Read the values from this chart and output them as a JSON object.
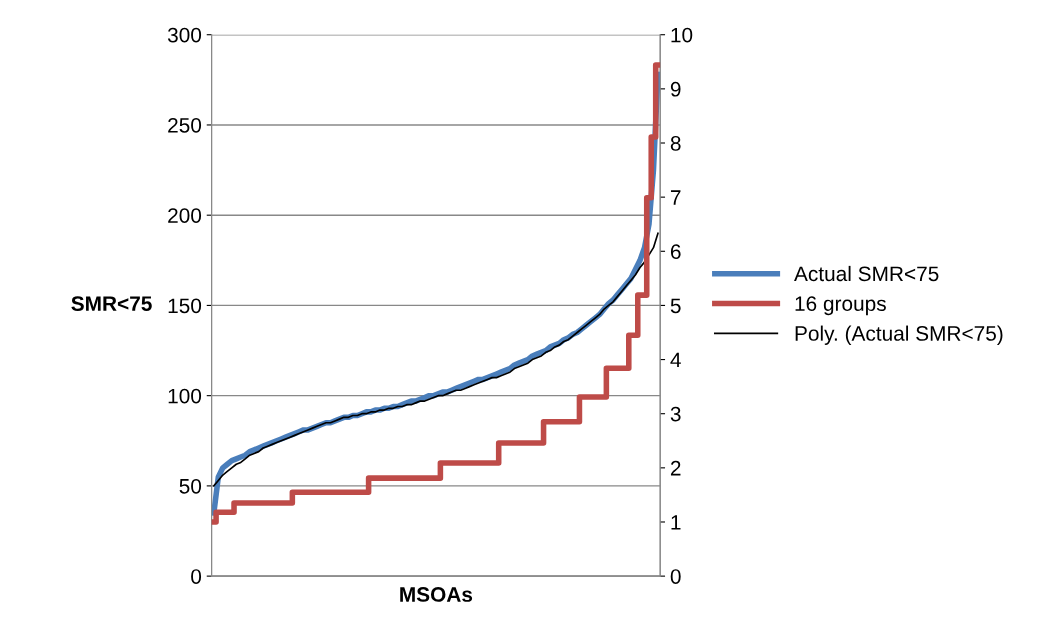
{
  "chart_data": {
    "type": "line",
    "xlabel": "MSOAs",
    "ylabel": "SMR<75",
    "categories": [
      null,
      null,
      null,
      null,
      null,
      null,
      null,
      null,
      null,
      null,
      null,
      null,
      null,
      null,
      null,
      null,
      null,
      null,
      null,
      null,
      null,
      null,
      null,
      null,
      null,
      null,
      null,
      null,
      null,
      null,
      null,
      null,
      null,
      null,
      null,
      null,
      null,
      null,
      null,
      null,
      null,
      null,
      null,
      null,
      null,
      null,
      null,
      null,
      null,
      null,
      null,
      null,
      null,
      null,
      null,
      null,
      null,
      null,
      null,
      null,
      null,
      null,
      null,
      null,
      null,
      null,
      null,
      null,
      null,
      null,
      null,
      null,
      null,
      null,
      null,
      null,
      null,
      null,
      null,
      null,
      null,
      null,
      null,
      null,
      null,
      null,
      null,
      null,
      null,
      null,
      null,
      null,
      null,
      null,
      null,
      null,
      null,
      null,
      null,
      null
    ],
    "series": [
      {
        "name": "Actual SMR<75",
        "color": "#4a7ebb",
        "values": [
          35,
          55,
          60,
          62,
          64,
          65,
          66,
          67,
          69,
          70,
          71,
          72,
          73,
          74,
          75,
          76,
          77,
          78,
          79,
          80,
          81,
          81,
          82,
          83,
          84,
          85,
          85,
          86,
          87,
          88,
          88,
          89,
          89,
          90,
          91,
          91,
          92,
          92,
          93,
          93,
          94,
          94,
          95,
          96,
          97,
          97,
          98,
          99,
          100,
          100,
          101,
          102,
          102,
          103,
          104,
          105,
          106,
          107,
          108,
          109,
          109,
          110,
          111,
          112,
          113,
          114,
          115,
          117,
          118,
          119,
          120,
          122,
          123,
          124,
          125,
          127,
          128,
          129,
          131,
          132,
          134,
          135,
          137,
          139,
          141,
          143,
          145,
          148,
          151,
          153,
          156,
          159,
          162,
          165,
          170,
          175,
          182,
          195,
          225,
          278
        ]
      },
      {
        "name": "16 groups",
        "color": "#be4b48",
        "type": "step",
        "axis": "y2",
        "values": [
          1.0,
          1.18,
          1.18,
          1.18,
          1.18,
          1.35,
          1.35,
          1.35,
          1.35,
          1.35,
          1.35,
          1.35,
          1.35,
          1.35,
          1.35,
          1.35,
          1.35,
          1.35,
          1.55,
          1.55,
          1.55,
          1.55,
          1.55,
          1.55,
          1.55,
          1.55,
          1.55,
          1.55,
          1.55,
          1.55,
          1.55,
          1.55,
          1.55,
          1.55,
          1.55,
          1.81,
          1.81,
          1.81,
          1.81,
          1.81,
          1.81,
          1.81,
          1.81,
          1.81,
          1.81,
          1.81,
          1.81,
          1.81,
          1.81,
          1.81,
          1.81,
          2.09,
          2.09,
          2.09,
          2.09,
          2.09,
          2.09,
          2.09,
          2.09,
          2.09,
          2.09,
          2.09,
          2.09,
          2.09,
          2.46,
          2.46,
          2.46,
          2.46,
          2.46,
          2.46,
          2.46,
          2.46,
          2.46,
          2.46,
          2.85,
          2.85,
          2.85,
          2.85,
          2.85,
          2.85,
          2.85,
          2.85,
          3.31,
          3.31,
          3.31,
          3.31,
          3.31,
          3.31,
          3.84,
          3.84,
          3.84,
          3.84,
          3.84,
          4.45,
          4.45,
          5.19,
          5.19,
          6.99,
          8.11,
          9.44
        ]
      },
      {
        "name": "Poly. (Actual SMR<75)",
        "color": "#000000",
        "values": [
          50,
          53,
          56,
          58,
          60,
          62,
          63,
          65,
          67,
          68,
          69,
          71,
          72,
          73,
          74,
          75,
          76,
          77,
          78,
          79,
          80,
          81,
          82,
          83,
          84,
          85,
          85,
          86,
          87,
          88,
          88,
          89,
          89,
          90,
          90,
          91,
          91,
          92,
          92,
          93,
          93,
          94,
          94,
          95,
          95,
          96,
          97,
          97,
          98,
          99,
          100,
          100,
          101,
          102,
          103,
          103,
          104,
          105,
          106,
          107,
          108,
          109,
          110,
          110,
          111,
          112,
          113,
          115,
          116,
          117,
          118,
          120,
          121,
          122,
          124,
          125,
          127,
          128,
          130,
          131,
          133,
          135,
          137,
          139,
          141,
          143,
          145,
          148,
          150,
          152,
          155,
          158,
          161,
          164,
          167,
          171,
          174,
          178,
          182,
          190
        ]
      }
    ],
    "ylim": [
      0,
      300
    ],
    "yticks": [
      0,
      50,
      100,
      150,
      200,
      250,
      300
    ],
    "y2lim": [
      0,
      10
    ],
    "y2ticks": [
      0,
      1,
      2,
      3,
      4,
      5,
      6,
      7,
      8,
      9,
      10
    ],
    "grid": "y",
    "legend": "right",
    "marker": "none",
    "line_style": "solid"
  }
}
